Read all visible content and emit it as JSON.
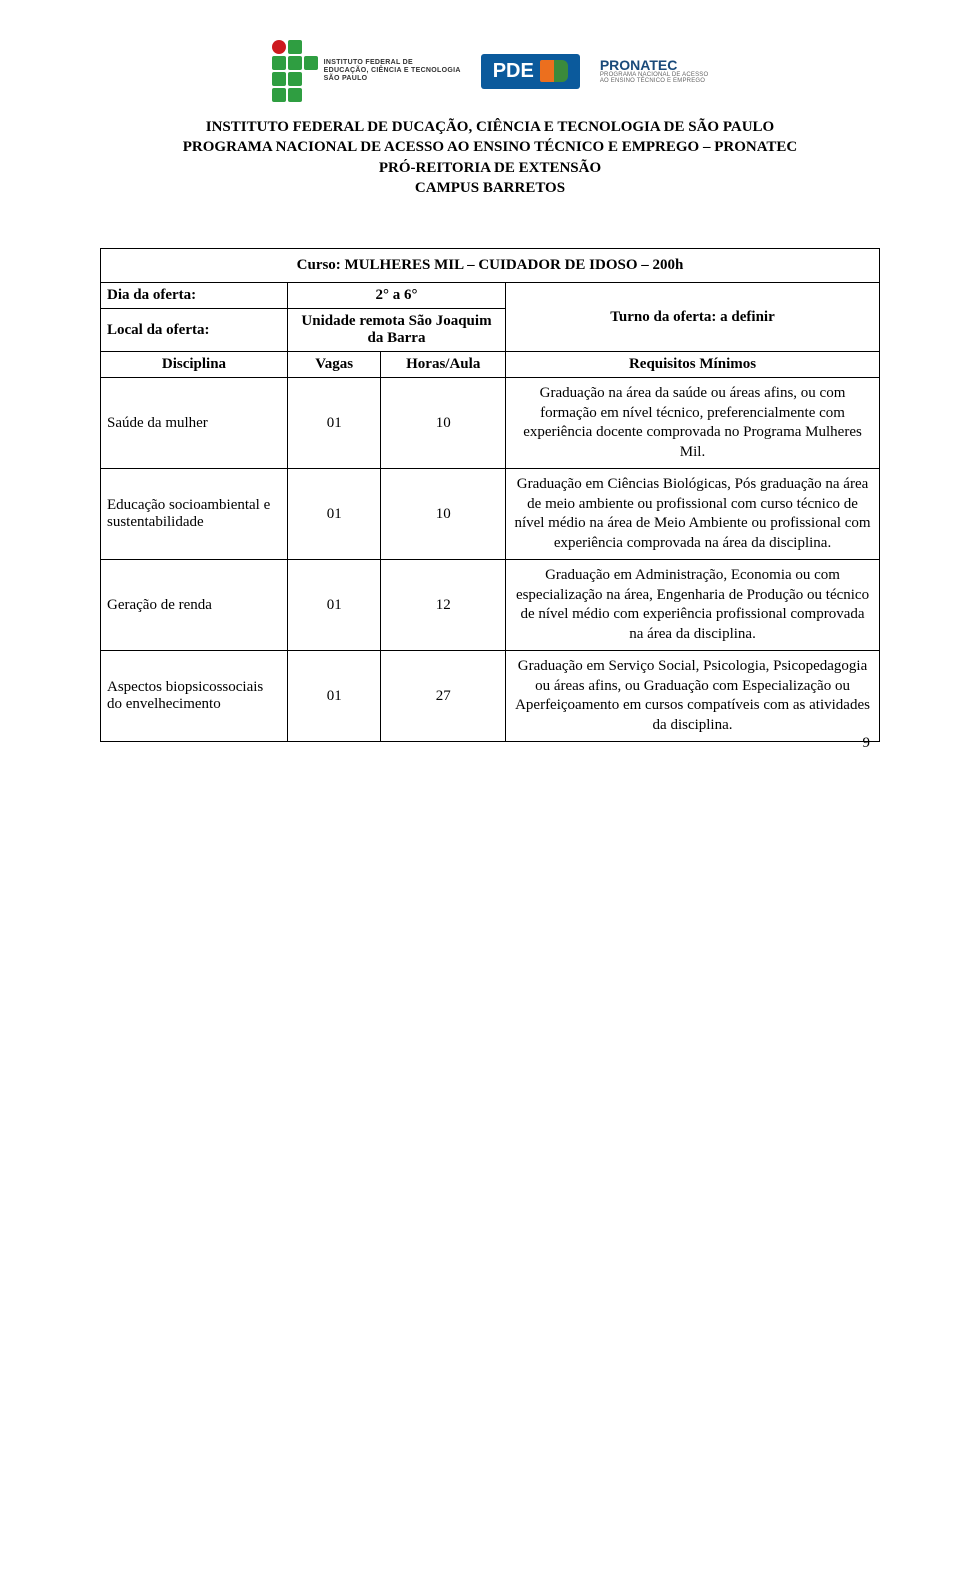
{
  "logos": {
    "if_text": "INSTITUTO FEDERAL DE\nEDUCAÇÃO, CIÊNCIA E TECNOLOGIA\nSÃO PAULO",
    "pde_text": "PDE",
    "pronatec_text": "PRONATEC",
    "pronatec_sub": "PROGRAMA NACIONAL DE ACESSO\nAO ENSINO TÉCNICO E EMPREGO"
  },
  "header": {
    "line1": "INSTITUTO FEDERAL DE DUCAÇÃO, CIÊNCIA E TECNOLOGIA DE SÃO PAULO",
    "line2": "PROGRAMA NACIONAL DE ACESSO AO ENSINO TÉCNICO E EMPREGO – PRONATEC",
    "line3": "PRÓ-REITORIA DE EXTENSÃO",
    "line4": "CAMPUS BARRETOS"
  },
  "table": {
    "course_title": "Curso: MULHERES MIL – CUIDADOR DE IDOSO – 200h",
    "offer_day_label": "Dia da oferta:",
    "offer_day_value": "2° a 6°",
    "offer_local_label": "Local da oferta:",
    "offer_local_value": "Unidade remota São Joaquim da Barra",
    "offer_turno": "Turno da oferta: a definir",
    "col_disciplina": "Disciplina",
    "col_vagas": "Vagas",
    "col_horas": "Horas/Aula",
    "col_requisitos": "Requisitos Mínimos",
    "rows": [
      {
        "disciplina": "Saúde da mulher",
        "vagas": "01",
        "horas": "10",
        "requisitos": "Graduação na área da saúde ou áreas afins, ou com formação em nível técnico, preferencialmente com experiência docente comprovada no Programa Mulheres Mil."
      },
      {
        "disciplina": "Educação socioambiental e sustentabilidade",
        "vagas": "01",
        "horas": "10",
        "requisitos": "Graduação em Ciências Biológicas, Pós graduação na área de meio ambiente ou profissional com curso técnico de nível médio na área de Meio Ambiente ou profissional com experiência comprovada na área da disciplina."
      },
      {
        "disciplina": "Geração de renda",
        "vagas": "01",
        "horas": "12",
        "requisitos": "Graduação em Administração, Economia ou com especialização na área, Engenharia de Produção ou técnico de nível médio com experiência profissional comprovada na área da disciplina."
      },
      {
        "disciplina": "Aspectos biopsicossociais do envelhecimento",
        "vagas": "01",
        "horas": "27",
        "requisitos": "Graduação em Serviço Social, Psicologia, Psicopedagogia ou áreas afins, ou Graduação com Especialização ou Aperfeiçoamento em cursos compatíveis com as atividades da disciplina."
      }
    ]
  },
  "page_number": "9"
}
